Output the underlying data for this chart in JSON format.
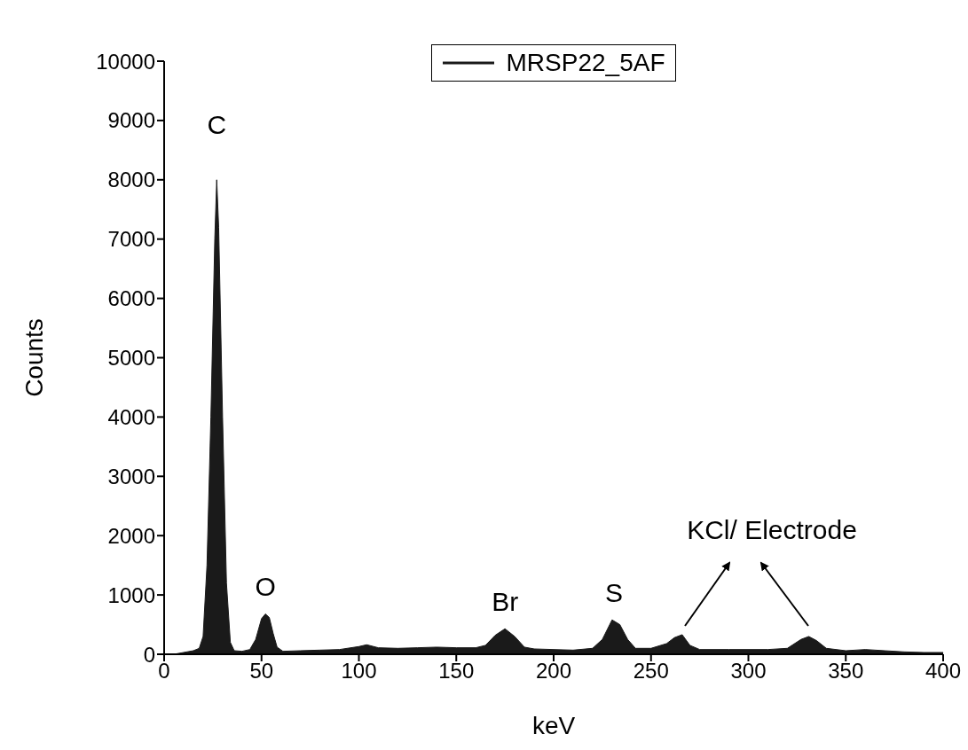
{
  "chart_data": {
    "type": "area",
    "xlabel": "keV",
    "ylabel": "Counts",
    "x": [
      0,
      5,
      10,
      15,
      18,
      20,
      22,
      24,
      26,
      27,
      28,
      30,
      32,
      34,
      36,
      40,
      44,
      47,
      50,
      52,
      54,
      56,
      58,
      61,
      70,
      80,
      90,
      100,
      104,
      110,
      120,
      130,
      140,
      150,
      160,
      165,
      170,
      175,
      180,
      185,
      190,
      200,
      210,
      220,
      225,
      230,
      234,
      238,
      242,
      250,
      258,
      262,
      266,
      270,
      275,
      290,
      310,
      320,
      327,
      331,
      335,
      340,
      350,
      360,
      370,
      380,
      390,
      400
    ],
    "series": [
      {
        "name": "MRSP22_5AF",
        "color": "#1a1a1a",
        "values": [
          0,
          0,
          30,
          60,
          100,
          300,
          1500,
          4000,
          7000,
          8000,
          7200,
          4000,
          1200,
          200,
          60,
          50,
          80,
          250,
          600,
          680,
          620,
          350,
          120,
          50,
          60,
          70,
          80,
          130,
          160,
          110,
          100,
          110,
          120,
          110,
          110,
          150,
          320,
          430,
          300,
          120,
          90,
          80,
          70,
          100,
          250,
          580,
          500,
          250,
          100,
          100,
          180,
          280,
          330,
          150,
          80,
          80,
          80,
          100,
          250,
          300,
          230,
          100,
          60,
          80,
          60,
          40,
          30,
          30
        ]
      }
    ],
    "xlim": [
      0,
      400
    ],
    "xticks": [
      0,
      50,
      100,
      150,
      200,
      250,
      300,
      350,
      400
    ],
    "ylim": [
      0,
      10000
    ],
    "yticks": [
      0,
      1000,
      2000,
      3000,
      4000,
      5000,
      6000,
      7000,
      8000,
      9000,
      10000
    ],
    "grid": false,
    "legend": "top",
    "annotations": [
      {
        "text": "C",
        "x": 27,
        "y": 8000
      },
      {
        "text": "O",
        "x": 52,
        "y": 680
      },
      {
        "text": "Br",
        "x": 175,
        "y": 430
      },
      {
        "text": "S",
        "x": 231,
        "y": 580
      },
      "KCl/ Electrode"
    ]
  }
}
